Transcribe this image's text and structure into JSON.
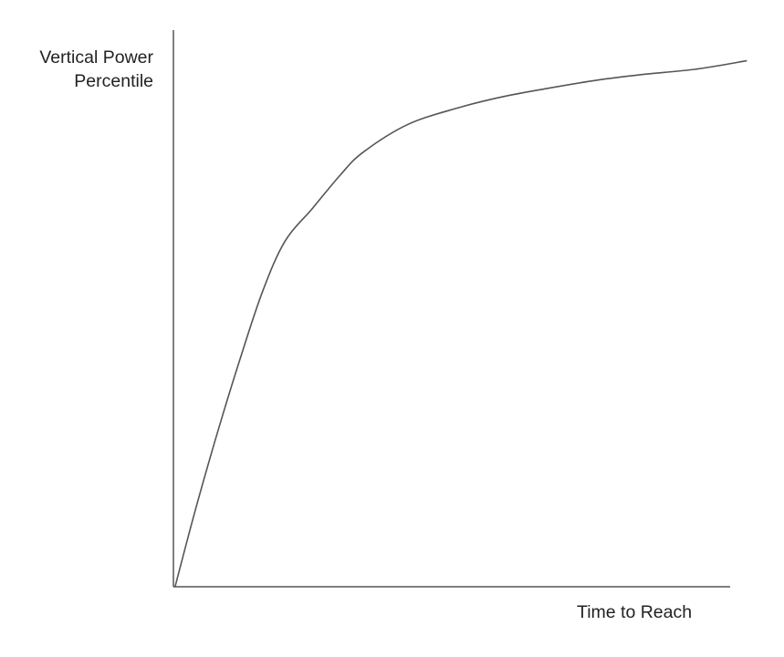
{
  "chart_data": {
    "type": "line",
    "title": "",
    "ylabel_lines": [
      "Vertical Power",
      "Percentile"
    ],
    "xlabel": "Time to Reach",
    "xlim": [
      0,
      100
    ],
    "ylim": [
      0,
      100
    ],
    "grid": false,
    "ticks": false,
    "series": [
      {
        "color": "#555555",
        "points": [
          [
            0.3,
            0
          ],
          [
            4,
            14
          ],
          [
            8,
            28
          ],
          [
            12,
            41
          ],
          [
            16,
            53
          ],
          [
            20,
            62
          ],
          [
            25,
            68
          ],
          [
            30,
            74
          ],
          [
            34,
            78
          ],
          [
            42,
            83
          ],
          [
            51,
            86
          ],
          [
            59,
            88
          ],
          [
            67,
            89.5
          ],
          [
            76,
            91
          ],
          [
            84,
            92
          ],
          [
            94,
            93
          ],
          [
            103,
            94.5
          ]
        ]
      }
    ],
    "axis_color": "#555555"
  }
}
